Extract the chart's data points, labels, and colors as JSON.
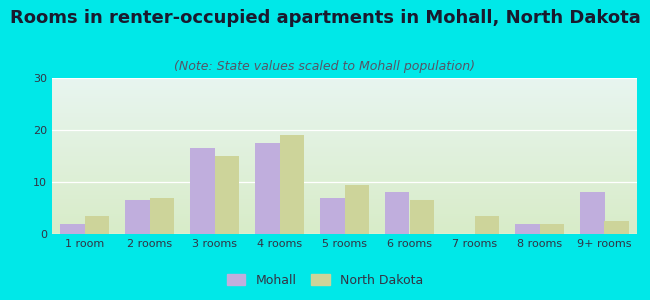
{
  "title": "Rooms in renter-occupied apartments in Mohall, North Dakota",
  "subtitle": "(Note: State values scaled to Mohall population)",
  "categories": [
    "1 room",
    "2 rooms",
    "3 rooms",
    "4 rooms",
    "5 rooms",
    "6 rooms",
    "7 rooms",
    "8 rooms",
    "9+ rooms"
  ],
  "mohall_values": [
    2,
    6.5,
    16.5,
    17.5,
    7,
    8,
    0,
    2,
    8
  ],
  "nd_values": [
    3.5,
    7,
    15,
    19,
    9.5,
    6.5,
    3.5,
    2,
    2.5
  ],
  "mohall_color": "#c0aedd",
  "nd_color": "#cdd49a",
  "ylim": [
    0,
    30
  ],
  "yticks": [
    0,
    10,
    20,
    30
  ],
  "bar_width": 0.38,
  "background_outer": "#00e8e8",
  "background_inner_top": "#e8f5f0",
  "background_inner_bottom": "#d8ecc8",
  "title_fontsize": 13,
  "subtitle_fontsize": 9,
  "tick_fontsize": 8,
  "legend_mohall": "Mohall",
  "legend_nd": "North Dakota",
  "title_color": "#1a1a2e",
  "subtitle_color": "#555566",
  "tick_color": "#333344"
}
